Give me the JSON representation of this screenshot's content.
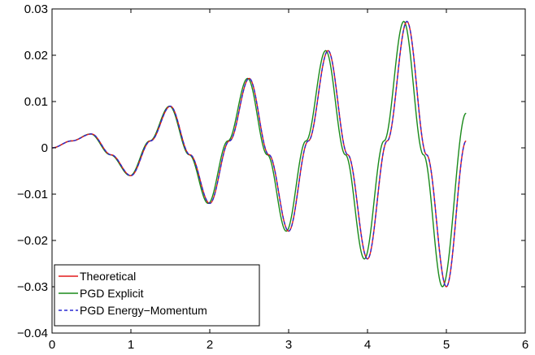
{
  "chart_data": {
    "type": "line",
    "title": "",
    "xlabel": "",
    "ylabel": "",
    "xlim": [
      0,
      6
    ],
    "ylim": [
      -0.04,
      0.03
    ],
    "x_ticks": [
      0,
      1,
      2,
      3,
      4,
      5,
      6
    ],
    "x_tick_labels": [
      "0",
      "1",
      "2",
      "3",
      "4",
      "5",
      "6"
    ],
    "y_ticks": [
      -0.04,
      -0.03,
      -0.02,
      -0.01,
      0,
      0.01,
      0.02,
      0.03
    ],
    "y_tick_labels": [
      "−0.04",
      "−0.03",
      "−0.02",
      "−0.01",
      "0",
      "0.01",
      "0.02",
      "0.03"
    ],
    "grid": false,
    "legend_position": "bottom-left",
    "series": [
      {
        "name": "Theoretical",
        "color": "#e41a1c",
        "style": "solid",
        "x": [
          0,
          0.25,
          0.5,
          0.75,
          1.0,
          1.25,
          1.5,
          1.75,
          2.0,
          2.25,
          2.5,
          2.75,
          3.0,
          3.25,
          3.5,
          3.75,
          4.0,
          4.25,
          4.5,
          4.75,
          5.0,
          5.25
        ],
        "y": [
          0,
          0.0015,
          0.003,
          -0.0015,
          -0.006,
          0.0015,
          0.009,
          -0.0015,
          -0.012,
          0.0015,
          0.015,
          -0.0015,
          -0.018,
          0.0015,
          0.021,
          -0.0015,
          -0.024,
          0.0015,
          0.0273,
          -0.0015,
          -0.03,
          0.0015
        ]
      },
      {
        "name": "PGD Explicit",
        "color": "#1a8a1a",
        "style": "solid",
        "x": [
          0,
          0.25,
          0.49,
          0.74,
          0.99,
          1.24,
          1.49,
          1.74,
          1.98,
          2.23,
          2.48,
          2.73,
          2.97,
          3.22,
          3.47,
          3.72,
          3.96,
          4.21,
          4.46,
          4.71,
          4.95,
          5.25
        ],
        "y": [
          0,
          0.0015,
          0.003,
          -0.0015,
          -0.006,
          0.0015,
          0.009,
          -0.0015,
          -0.012,
          0.0015,
          0.015,
          -0.0015,
          -0.018,
          0.0015,
          0.021,
          -0.0015,
          -0.024,
          0.0015,
          0.0273,
          -0.0015,
          -0.03,
          0.0075
        ]
      },
      {
        "name": "PGD Energy−Momentum",
        "color": "#2a2ad4",
        "style": "dashed",
        "x": [
          0,
          0.25,
          0.5,
          0.75,
          1.0,
          1.25,
          1.5,
          1.75,
          2.0,
          2.25,
          2.5,
          2.75,
          3.0,
          3.25,
          3.5,
          3.75,
          4.0,
          4.25,
          4.5,
          4.75,
          5.0,
          5.25
        ],
        "y": [
          0,
          0.0015,
          0.003,
          -0.0015,
          -0.006,
          0.0015,
          0.009,
          -0.0015,
          -0.012,
          0.0015,
          0.015,
          -0.0015,
          -0.018,
          0.0015,
          0.021,
          -0.0015,
          -0.024,
          0.0015,
          0.0273,
          -0.0015,
          -0.03,
          0.0015
        ]
      }
    ]
  }
}
